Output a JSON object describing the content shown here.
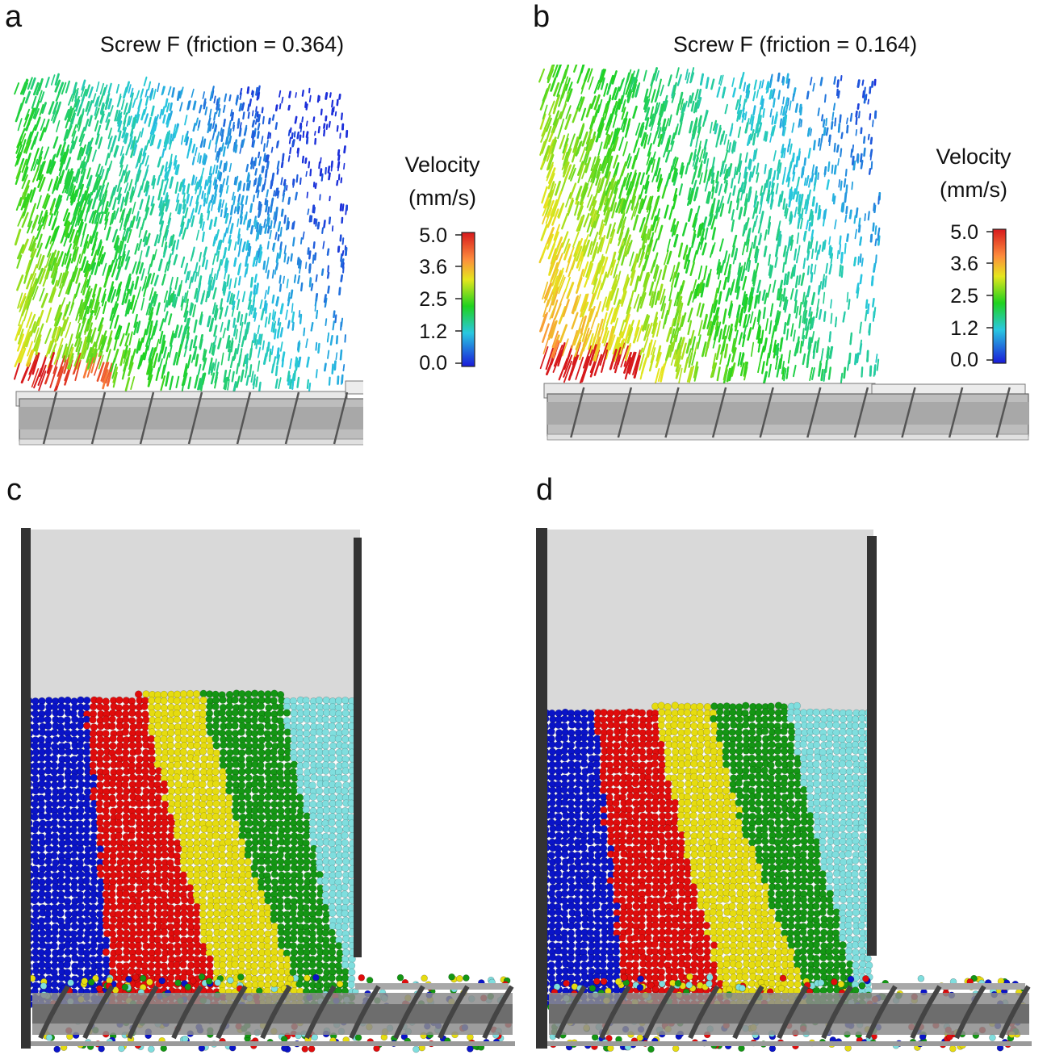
{
  "panels": {
    "a": {
      "label": "a",
      "title": "Screw F (friction = 0.364)"
    },
    "b": {
      "label": "b",
      "title": "Screw F (friction = 0.164)"
    },
    "c": {
      "label": "c"
    },
    "d": {
      "label": "d"
    }
  },
  "colorbar": {
    "title_line1": "Velocity",
    "title_line2": "(mm/s)",
    "ticks": [
      "5.0",
      "3.6",
      "2.5",
      "1.2",
      "0.0"
    ],
    "colors": [
      "#d7191c",
      "#fdae61",
      "#1fd21f",
      "#29c8e0",
      "#1a1ad9"
    ]
  },
  "layer_colors": [
    "#0a14c8",
    "#e00c0c",
    "#e6dc10",
    "#149614",
    "#7fdede"
  ]
}
